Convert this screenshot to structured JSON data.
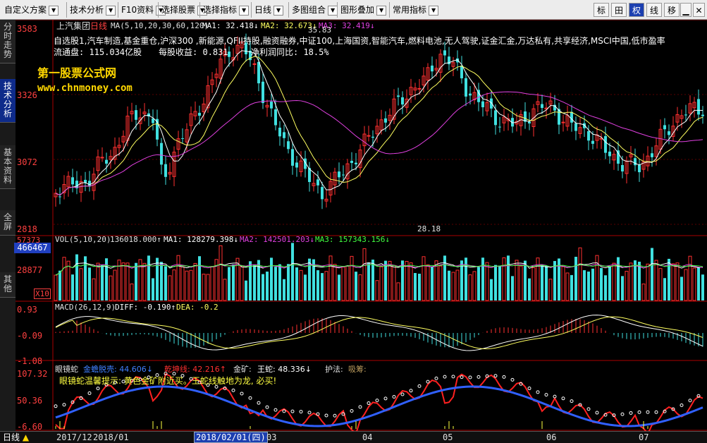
{
  "menu": {
    "items": [
      {
        "label": "自定义方案",
        "x": 6
      },
      {
        "label": "技术分析",
        "x": 98
      },
      {
        "label": "F10资料",
        "x": 171
      },
      {
        "label": "选择股票",
        "x": 228
      },
      {
        "label": "选择指标",
        "x": 287
      },
      {
        "label": "日线",
        "x": 360
      },
      {
        "label": "多图组合",
        "x": 413
      },
      {
        "label": "图形叠加",
        "x": 482
      },
      {
        "label": "常用指标",
        "x": 556
      }
    ],
    "right_buttons": [
      "标",
      "田",
      "权",
      "线",
      "移"
    ]
  },
  "sidebar": [
    "分时走势",
    "技术分析",
    "基本资料",
    "全屏",
    "其他"
  ],
  "stock": {
    "name": "上汽集团",
    "period": "日线",
    "ma_label": "MA(5,10,20,30,60,120)",
    "ma1": "MA1: 32.418↓",
    "ma2": "MA2: 32.673↓",
    "ma3": "MA3: 32.419↓",
    "concepts": "自选股1,汽车制造,基金重仓,沪深300 ,新能源,QFII持股,融资融券,中证100,上海国资,智能汽车,燃料电池,无人驾驶,证金汇金,万达私有,共享经济,MSCI中国,低市盈率",
    "float_cap": "流通盘: 115.034亿股",
    "eps": "每股收益: 0.831",
    "profit": "净利润同比: 18.5%",
    "watermark_name": "第一股票公式网",
    "watermark_url": "www.chnmoney.com",
    "high_marker": "35.83",
    "low_marker": "28.18"
  },
  "price_axis": [
    "3583",
    "3326",
    "3072",
    "2818"
  ],
  "volume": {
    "label": "VOL(5,10,20)",
    "value": "136018.000↑",
    "ma1": "MA1: 128279.398↓",
    "ma2": "MA2: 142501.203↓",
    "ma3": "MA3: 157343.156↓",
    "axis": [
      "57373",
      "28877"
    ],
    "highlight": "466467",
    "unit": "X10"
  },
  "macd": {
    "label": "MACD(26,12,9)",
    "diff": "DIFF: -0.190↑",
    "dea": "DEA: -0.2",
    "axis": [
      "0.93",
      "-0.09",
      "-1.08"
    ]
  },
  "snake": {
    "name": "眼镜蛇",
    "gold": "金蟾脱壳: 44.606↓",
    "qian": "乾坤线: 42.216↑",
    "ore": "金矿:",
    "king": "王蛇: 48.336↓",
    "protect": "护法:",
    "absorb": "吸筹:",
    "hint": "眼镜蛇温馨提示: 黄色金矿附近买。王蛇线触地为龙, 必买!",
    "axis": [
      "107.32",
      "50.36",
      "-6.60"
    ]
  },
  "dates": [
    "2017/12",
    "2018/01",
    "2018/02/01(四)",
    "03",
    "04",
    "05",
    "06",
    "07"
  ],
  "bottom_period": "日线",
  "colors": {
    "up": "#ff3030",
    "down": "#40e0e0",
    "ma1": "#ffffff",
    "ma2": "#ffff60",
    "ma3": "#e040e0",
    "accent": "#1c3fb0"
  }
}
